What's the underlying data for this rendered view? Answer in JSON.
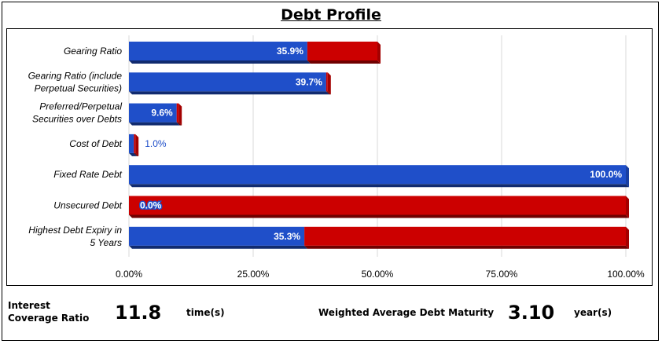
{
  "title": "Debt Profile",
  "chart_data": {
    "type": "bar",
    "orientation": "horizontal",
    "stacked": true,
    "categories": [
      "Gearing Ratio",
      "Gearing Ratio (include Perpetual Securities)",
      "Preferred/Perpetual Securities over Debts",
      "Cost of Debt",
      "Fixed Rate Debt",
      "Unsecured Debt",
      "Highest Debt Expiry in 5 Years"
    ],
    "category_lines": [
      [
        "Gearing Ratio"
      ],
      [
        "Gearing Ratio (include",
        "Perpetual Securities)"
      ],
      [
        "Preferred/Perpetual",
        "Securities over Debts"
      ],
      [
        "Cost of Debt"
      ],
      [
        "Fixed Rate Debt"
      ],
      [
        "Unsecured Debt"
      ],
      [
        "Highest Debt Expiry in",
        "5 Years"
      ]
    ],
    "series": [
      {
        "values": [
          35.9,
          39.7,
          9.6,
          1.0,
          100.0,
          0.0,
          35.3
        ],
        "color": "#1f4fc9",
        "labels": [
          "35.9%",
          "39.7%",
          "9.6%",
          "1.0%",
          "100.0%",
          "0.0%",
          "35.3%"
        ]
      },
      {
        "values": [
          14.1,
          0.3,
          0.4,
          0.3,
          0.0,
          100.0,
          64.7
        ],
        "color": "#cc0000"
      }
    ],
    "xlim": [
      0,
      100
    ],
    "xticks": [
      0,
      25,
      50,
      75,
      100
    ],
    "xtick_labels": [
      "0.00%",
      "25.00%",
      "50.00%",
      "75.00%",
      "100.00%"
    ],
    "grid": true,
    "legend": "none"
  },
  "footer": {
    "interest_coverage_label": "Interest Coverage Ratio",
    "interest_coverage_value": "11.8",
    "interest_coverage_unit": "time(s)",
    "wadm_label": "Weighted Average Debt Maturity",
    "wadm_value": "3.10",
    "wadm_unit": "year(s)"
  }
}
